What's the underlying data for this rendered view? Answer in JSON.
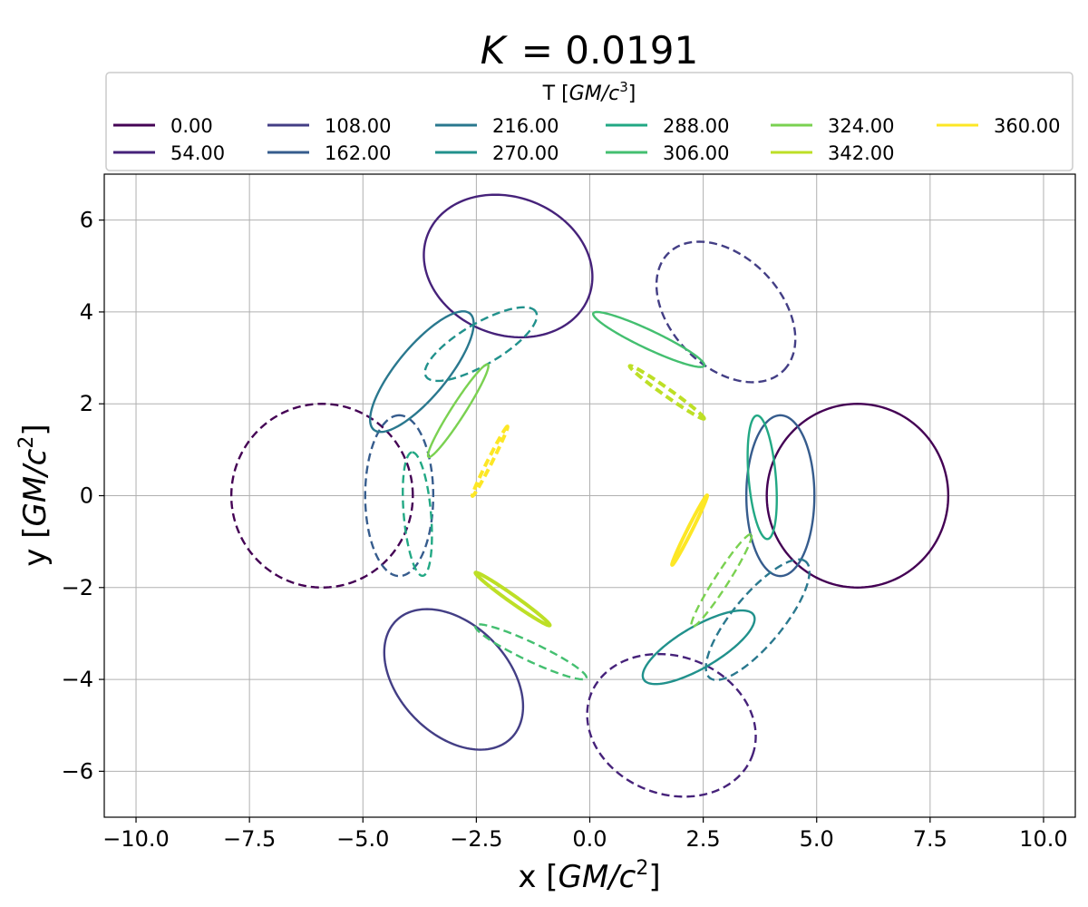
{
  "chart_data": {
    "type": "line",
    "title": "K = 0.0191",
    "title_var": "K",
    "title_value": "= 0.0191",
    "xlabel": "x [GM/c²]",
    "ylabel": "y [GM/c²]",
    "xlabel_parts": {
      "plain": "x [",
      "math": "GM/c",
      "sup": "2",
      "close": "]"
    },
    "ylabel_parts": {
      "plain": "y [",
      "math": "GM/c",
      "sup": "2",
      "close": "]"
    },
    "xlim": [
      -10.7,
      10.7
    ],
    "ylim": [
      -7.0,
      7.0
    ],
    "xticks": [
      -10.0,
      -7.5,
      -5.0,
      -2.5,
      0.0,
      2.5,
      5.0,
      7.5,
      10.0
    ],
    "xtick_labels": [
      "−10.0",
      "−7.5",
      "−5.0",
      "−2.5",
      "0.0",
      "2.5",
      "5.0",
      "7.5",
      "10.0"
    ],
    "yticks": [
      -6,
      -4,
      -2,
      0,
      2,
      4,
      6
    ],
    "ytick_labels": [
      "−6",
      "−4",
      "−2",
      "0",
      "2",
      "4",
      "6"
    ],
    "grid": true,
    "legend": {
      "title": "T [GM/c³]",
      "title_parts": {
        "plain": "T [",
        "math": "GM/c",
        "sup": "3",
        "close": "]"
      },
      "placement": "top-center, above axes",
      "columns": 6
    },
    "series": [
      {
        "name": "0.00",
        "color": "#440154",
        "cx": 5.9,
        "cy": 0.0,
        "a": 2.0,
        "b": 2.0,
        "angle": 0
      },
      {
        "name": "54.00",
        "color": "#46227a",
        "cx": -1.8,
        "cy": 5.0,
        "a": 1.9,
        "b": 1.5,
        "angle": -20
      },
      {
        "name": "108.00",
        "color": "#433e85",
        "cx": -3.0,
        "cy": -4.0,
        "a": 1.8,
        "b": 1.2,
        "angle": -45
      },
      {
        "name": "162.00",
        "color": "#365c8d",
        "cx": 4.2,
        "cy": 0.0,
        "a": 1.75,
        "b": 0.75,
        "angle": 90
      },
      {
        "name": "216.00",
        "color": "#2a788e",
        "cx": -3.7,
        "cy": 2.7,
        "a": 1.65,
        "b": 0.55,
        "angle": 50
      },
      {
        "name": "270.00",
        "color": "#21918c",
        "cx": 2.4,
        "cy": -3.3,
        "a": 1.4,
        "b": 0.45,
        "angle": 30
      },
      {
        "name": "288.00",
        "color": "#22a884",
        "cx": 3.8,
        "cy": 0.4,
        "a": 1.35,
        "b": 0.3,
        "angle": 95
      },
      {
        "name": "306.00",
        "color": "#44bf70",
        "cx": 1.3,
        "cy": 3.4,
        "a": 1.35,
        "b": 0.2,
        "angle": -25
      },
      {
        "name": "324.00",
        "color": "#7ad151",
        "cx": -2.9,
        "cy": 1.85,
        "a": 1.2,
        "b": 0.15,
        "angle": 57
      },
      {
        "name": "342.00",
        "color": "#bddf26",
        "cx": -1.7,
        "cy": -2.25,
        "a": 1.0,
        "b": 0.08,
        "angle": -35
      },
      {
        "name": "360.00",
        "color": "#fde725",
        "cx": 2.2,
        "cy": -0.75,
        "a": 0.85,
        "b": 0.05,
        "angle": 63
      }
    ],
    "mirror_series_style": "dashed (point-reflected copy, same color)"
  }
}
